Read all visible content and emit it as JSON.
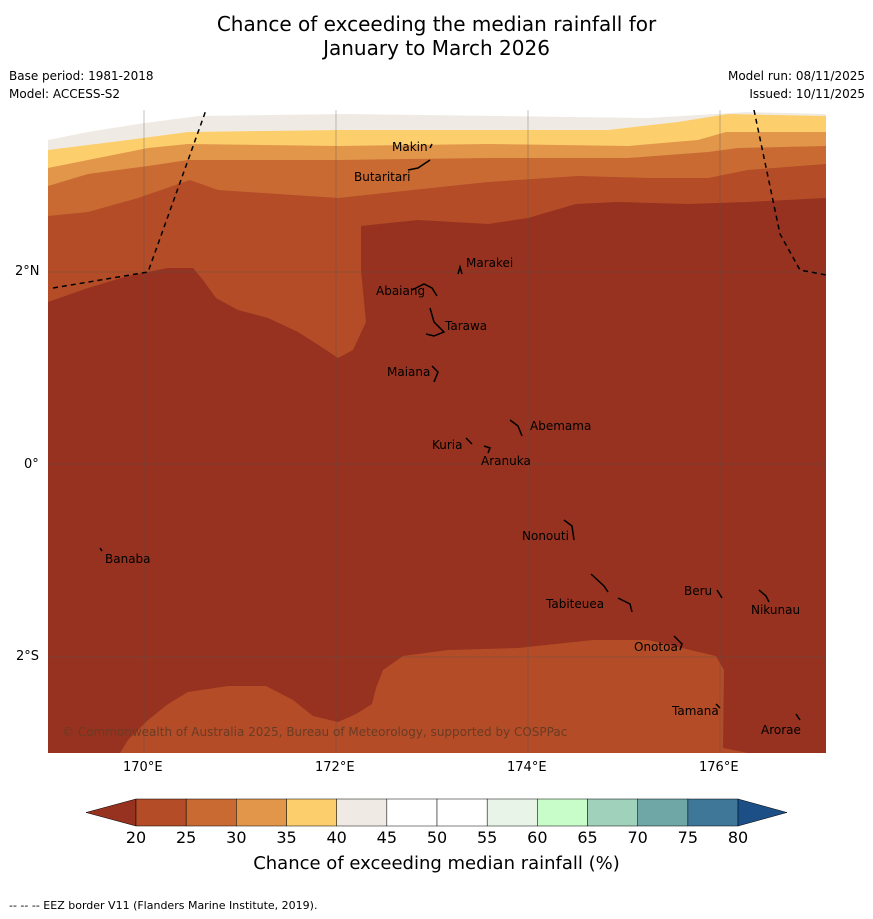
{
  "title": {
    "line1": "Chance of exceeding the median rainfall for",
    "line2": "January to March 2026"
  },
  "meta": {
    "base_period": "Base period: 1981-2018",
    "model": "Model: ACCESS-S2",
    "model_run": "Model run: 08/11/2025",
    "issued": "Issued: 10/11/2025"
  },
  "map": {
    "lon_labels": [
      "170°E",
      "172°E",
      "174°E",
      "176°E"
    ],
    "lat_labels": [
      "2°N",
      "0°",
      "2°S"
    ],
    "islands": [
      "Makin",
      "Butaritari",
      "Marakei",
      "Abaiang",
      "Tarawa",
      "Maiana",
      "Abemama",
      "Kuria",
      "Aranuka",
      "Nonouti",
      "Banaba",
      "Tabiteuea",
      "Beru",
      "Nikunau",
      "Onotoa",
      "Tamana",
      "Arorae"
    ],
    "copyright": "© Commonwealth of Australia 2025, Bureau of Meteorology, supported by COSPPac"
  },
  "colorbar": {
    "title": "Chance of exceeding median rainfall (%)",
    "ticks": [
      "20",
      "25",
      "30",
      "35",
      "40",
      "45",
      "50",
      "55",
      "60",
      "65",
      "70",
      "75",
      "80"
    ],
    "colors": {
      "below20": "#96321F",
      "b20_25": "#B34C27",
      "b25_30": "#C96A33",
      "b30_35": "#E1964A",
      "b35_40": "#FCCE6C",
      "b40_45": "#EFEBE4",
      "b45_50": "#FFFFFF",
      "b50_55": "#FFFFFF",
      "b55_60": "#E8F4E8",
      "b60_65": "#C8FCC8",
      "b65_70": "#A0D1BA",
      "b70_75": "#6FA6A6",
      "b75_80": "#3F7798",
      "above80": "#1B4F86"
    }
  },
  "footer": "--  --  -- EEZ border V11 (Flanders Marine Institute, 2019)."
}
